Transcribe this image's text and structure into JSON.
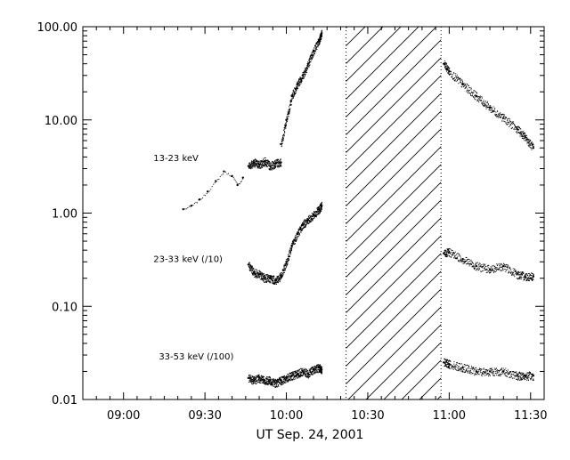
{
  "chart_data": {
    "type": "scatter",
    "title": "",
    "xlabel": "UT Sep. 24, 2001",
    "ylabel": "",
    "y_scale": "log",
    "ylim": [
      0.01,
      100
    ],
    "xlim": [
      "08:45",
      "11:35"
    ],
    "grid": false,
    "legend": "none",
    "x_tick_labels": [
      "09:00",
      "09:30",
      "10:00",
      "10:30",
      "11:00",
      "11:30"
    ],
    "y_tick_labels": [
      "100.00",
      "10.00",
      "1.00",
      "0.10",
      "0.01"
    ],
    "data_gap": {
      "from": "10:22",
      "to": "10:57",
      "style": "hatched",
      "boundaries": "dotted"
    },
    "series": [
      {
        "name": "13-23 keV",
        "segments": [
          {
            "x": [
              "09:22",
              "09:25",
              "09:28",
              "09:31",
              "09:34",
              "09:37",
              "09:40",
              "09:42",
              "09:44"
            ],
            "y": [
              1.1,
              1.2,
              1.4,
              1.7,
              2.2,
              2.8,
              2.5,
              2.0,
              2.4
            ]
          },
          {
            "x": [
              "09:46",
              "09:48",
              "09:50",
              "09:52",
              "09:54",
              "09:56",
              "09:58"
            ],
            "y": [
              3.2,
              3.5,
              3.3,
              3.6,
              3.2,
              3.4,
              3.5
            ]
          },
          {
            "x": [
              "09:58",
              "10:00",
              "10:02",
              "10:04",
              "10:06",
              "10:08",
              "10:10",
              "10:12",
              "10:13"
            ],
            "y": [
              5.5,
              10.0,
              18.0,
              24.0,
              30.0,
              40.0,
              55.0,
              72.0,
              85.0
            ]
          },
          {
            "x": [
              "10:58",
              "11:00",
              "11:05",
              "11:10",
              "11:15",
              "11:20",
              "11:25",
              "11:28",
              "11:31"
            ],
            "y": [
              40.0,
              33.0,
              24.0,
              18.0,
              13.5,
              10.5,
              8.0,
              6.5,
              5.0
            ]
          }
        ]
      },
      {
        "name": "23-33 keV (/10)",
        "segments": [
          {
            "x": [
              "09:46",
              "09:48",
              "09:50",
              "09:52",
              "09:54",
              "09:56",
              "09:58",
              "10:00",
              "10:02",
              "10:04",
              "10:06",
              "10:08",
              "10:10",
              "10:12",
              "10:13"
            ],
            "y": [
              0.28,
              0.23,
              0.22,
              0.2,
              0.2,
              0.19,
              0.21,
              0.3,
              0.45,
              0.6,
              0.75,
              0.85,
              0.95,
              1.1,
              1.2
            ]
          },
          {
            "x": [
              "10:58",
              "11:00",
              "11:05",
              "11:10",
              "11:15",
              "11:20",
              "11:25",
              "11:28",
              "11:31"
            ],
            "y": [
              0.37,
              0.38,
              0.32,
              0.27,
              0.25,
              0.27,
              0.22,
              0.21,
              0.21
            ]
          }
        ]
      },
      {
        "name": "33-53 keV (/100)",
        "segments": [
          {
            "x": [
              "09:46",
              "09:48",
              "09:50",
              "09:52",
              "09:54",
              "09:56",
              "09:58",
              "10:00",
              "10:02",
              "10:04",
              "10:06",
              "10:08",
              "10:10",
              "10:12",
              "10:13"
            ],
            "y": [
              0.017,
              0.016,
              0.017,
              0.016,
              0.016,
              0.015,
              0.016,
              0.017,
              0.018,
              0.019,
              0.02,
              0.019,
              0.021,
              0.022,
              0.021
            ]
          },
          {
            "x": [
              "10:58",
              "11:00",
              "11:05",
              "11:10",
              "11:15",
              "11:20",
              "11:25",
              "11:28",
              "11:31"
            ],
            "y": [
              0.025,
              0.024,
              0.022,
              0.02,
              0.02,
              0.02,
              0.018,
              0.018,
              0.018
            ]
          }
        ]
      }
    ],
    "annotations": [
      {
        "text": "13-23 keV",
        "x": "09:11",
        "y": 3.6
      },
      {
        "text": "23-33 keV (/10)",
        "x": "09:11",
        "y": 0.3
      },
      {
        "text": "33-53 keV (/100)",
        "x": "09:13",
        "y": 0.027
      }
    ]
  }
}
